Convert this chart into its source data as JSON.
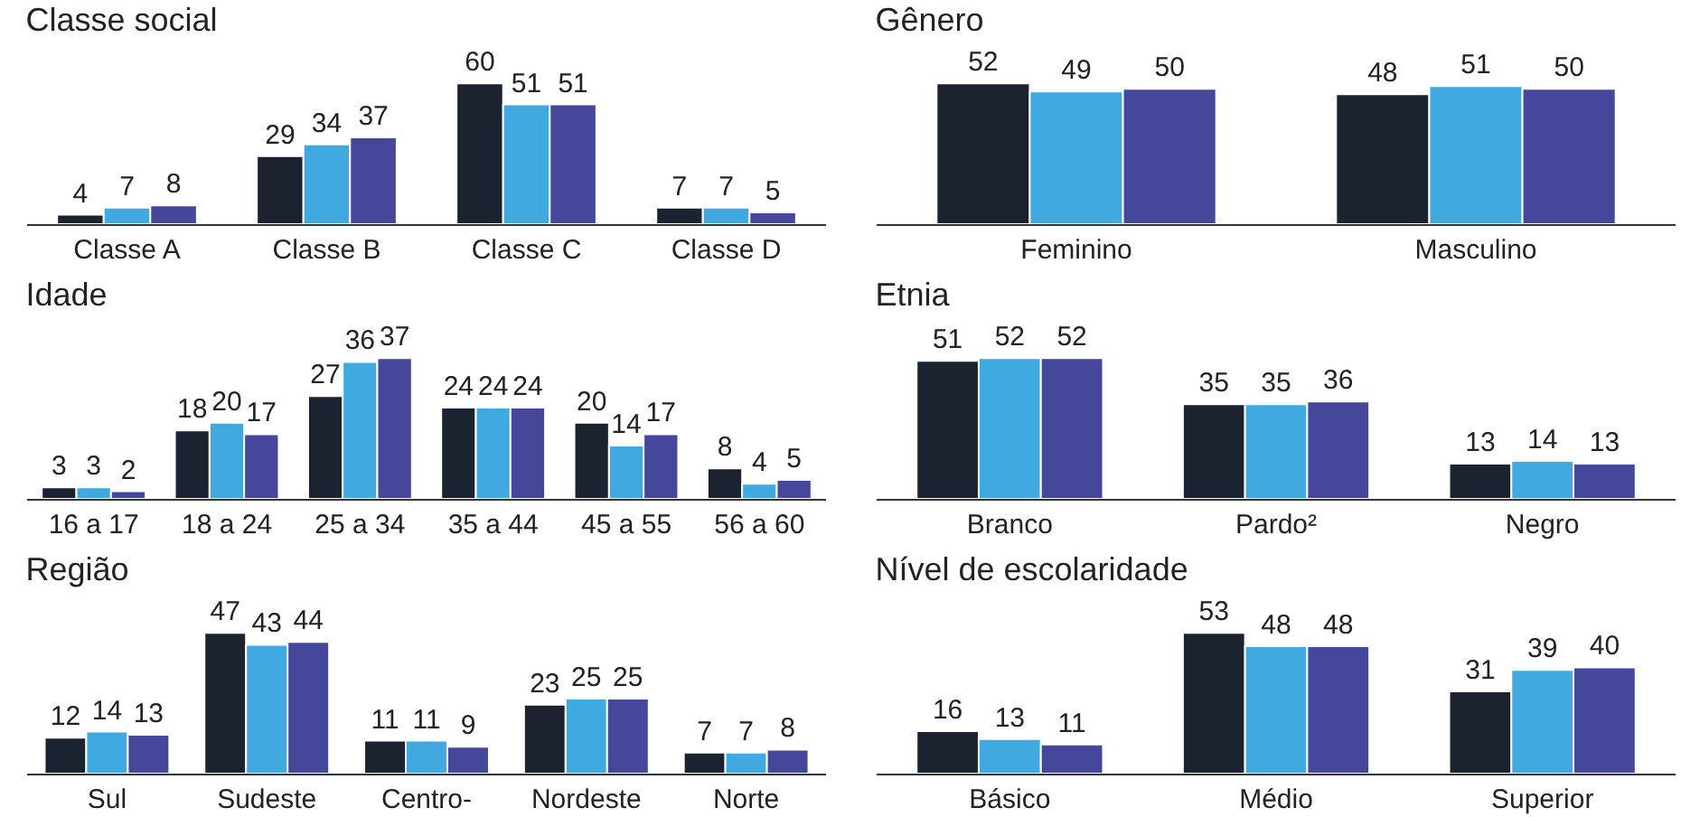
{
  "chart_data": [
    {
      "type": "bar",
      "title": "Classe social",
      "categories": [
        "Classe A",
        "Classe B",
        "Classe C",
        "Classe D"
      ],
      "tick_labels": "x",
      "data_labels": true,
      "series": [
        {
          "color": "#1b2230",
          "values": [
            4,
            29,
            60,
            7
          ]
        },
        {
          "color": "#3fa9e0",
          "values": [
            7,
            34,
            51,
            7
          ]
        },
        {
          "color": "#45489a",
          "values": [
            8,
            37,
            51,
            5
          ]
        }
      ]
    },
    {
      "type": "bar",
      "title": "Gênero",
      "categories": [
        "Feminino",
        "Masculino"
      ],
      "tick_labels": "x",
      "data_labels": true,
      "series": [
        {
          "color": "#1b2230",
          "values": [
            52,
            48
          ]
        },
        {
          "color": "#3fa9e0",
          "values": [
            49,
            51
          ]
        },
        {
          "color": "#45489a",
          "values": [
            50,
            50
          ]
        }
      ]
    },
    {
      "type": "bar",
      "title": "Idade",
      "categories": [
        "16 a 17",
        "18 a 24",
        "25 a 34",
        "35 a 44",
        "45 a 55",
        "56 a 60"
      ],
      "tick_labels": "x",
      "data_labels": true,
      "series": [
        {
          "color": "#1b2230",
          "values": [
            3,
            18,
            27,
            24,
            20,
            8
          ]
        },
        {
          "color": "#3fa9e0",
          "values": [
            3,
            20,
            36,
            24,
            14,
            4
          ]
        },
        {
          "color": "#45489a",
          "values": [
            2,
            17,
            37,
            24,
            17,
            5
          ]
        }
      ]
    },
    {
      "type": "bar",
      "title": "Etnia",
      "categories": [
        "Branco",
        "Pardo²",
        "Negro"
      ],
      "tick_labels": "x",
      "data_labels": true,
      "series": [
        {
          "color": "#1b2230",
          "values": [
            51,
            35,
            13
          ]
        },
        {
          "color": "#3fa9e0",
          "values": [
            52,
            35,
            14
          ]
        },
        {
          "color": "#45489a",
          "values": [
            52,
            36,
            13
          ]
        }
      ]
    },
    {
      "type": "bar",
      "title": "Região",
      "categories": [
        "Sul",
        "Sudeste",
        "Centro-",
        "Nordeste",
        "Norte"
      ],
      "tick_labels": "x",
      "data_labels": true,
      "series": [
        {
          "color": "#1b2230",
          "values": [
            12,
            47,
            11,
            23,
            7
          ]
        },
        {
          "color": "#3fa9e0",
          "values": [
            14,
            43,
            11,
            25,
            7
          ]
        },
        {
          "color": "#45489a",
          "values": [
            13,
            44,
            9,
            25,
            8
          ]
        }
      ]
    },
    {
      "type": "bar",
      "title": "Nível de escolaridade",
      "categories": [
        "Básico",
        "Médio",
        "Superior"
      ],
      "tick_labels": "x",
      "data_labels": true,
      "series": [
        {
          "color": "#1b2230",
          "values": [
            16,
            53,
            31
          ]
        },
        {
          "color": "#3fa9e0",
          "values": [
            13,
            48,
            39
          ]
        },
        {
          "color": "#45489a",
          "values": [
            11,
            48,
            40
          ]
        }
      ]
    }
  ]
}
